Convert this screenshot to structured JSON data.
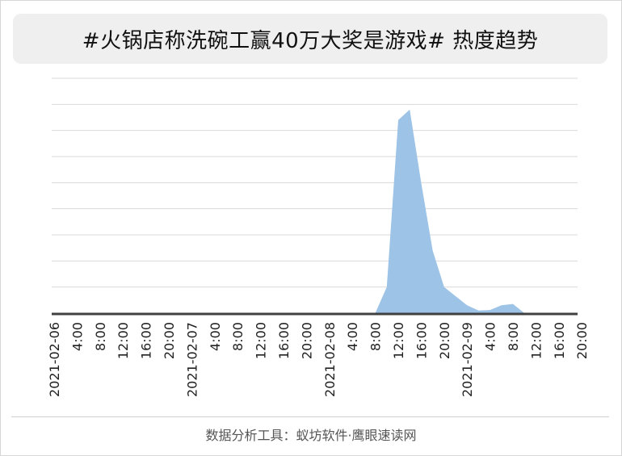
{
  "title": "#火锅店称洗碗工赢40万大奖是游戏# 热度趋势",
  "footer": "数据分析工具：蚁坊软件·鹰眼速读网",
  "colors": {
    "area": "#9dc3e6",
    "grid": "#d9d9d9",
    "axis": "#404040",
    "text": "#222222"
  },
  "chart_data": {
    "type": "area",
    "title": "#火锅店称洗碗工赢40万大奖是游戏# 热度趋势",
    "xlabel": "",
    "ylabel": "",
    "grid": true,
    "legend": "none",
    "ylim": [
      0,
      9
    ],
    "y_ticks_shown": false,
    "tick_labels": [
      "2021-02-06",
      "4:00",
      "8:00",
      "12:00",
      "16:00",
      "20:00",
      "2021-02-07",
      "4:00",
      "8:00",
      "12:00",
      "16:00",
      "20:00",
      "2021-02-08",
      "4:00",
      "8:00",
      "12:00",
      "16:00",
      "20:00",
      "2021-02-09",
      "4:00",
      "8:00",
      "12:00",
      "16:00",
      "20:00"
    ],
    "x": [
      "2021-02-06 00:00",
      "2021-02-06 02:00",
      "2021-02-06 04:00",
      "2021-02-06 06:00",
      "2021-02-06 08:00",
      "2021-02-06 10:00",
      "2021-02-06 12:00",
      "2021-02-06 14:00",
      "2021-02-06 16:00",
      "2021-02-06 18:00",
      "2021-02-06 20:00",
      "2021-02-06 22:00",
      "2021-02-07 00:00",
      "2021-02-07 02:00",
      "2021-02-07 04:00",
      "2021-02-07 06:00",
      "2021-02-07 08:00",
      "2021-02-07 10:00",
      "2021-02-07 12:00",
      "2021-02-07 14:00",
      "2021-02-07 16:00",
      "2021-02-07 18:00",
      "2021-02-07 20:00",
      "2021-02-07 22:00",
      "2021-02-08 00:00",
      "2021-02-08 02:00",
      "2021-02-08 04:00",
      "2021-02-08 06:00",
      "2021-02-08 08:00",
      "2021-02-08 10:00",
      "2021-02-08 12:00",
      "2021-02-08 14:00",
      "2021-02-08 16:00",
      "2021-02-08 18:00",
      "2021-02-08 20:00",
      "2021-02-08 22:00",
      "2021-02-09 00:00",
      "2021-02-09 02:00",
      "2021-02-09 04:00",
      "2021-02-09 06:00",
      "2021-02-09 08:00",
      "2021-02-09 10:00",
      "2021-02-09 12:00",
      "2021-02-09 14:00",
      "2021-02-09 16:00",
      "2021-02-09 18:00",
      "2021-02-09 20:00",
      "2021-02-09 22:00"
    ],
    "series": [
      {
        "values": [
          0,
          0,
          0,
          0,
          0,
          0,
          0,
          0,
          0,
          0,
          0,
          0,
          0,
          0,
          0,
          0,
          0,
          0,
          0,
          0,
          0,
          0,
          0,
          0,
          0,
          0,
          0,
          0,
          0,
          1.0,
          7.4,
          7.8,
          5.0,
          2.4,
          1.0,
          0.65,
          0.3,
          0.1,
          0.12,
          0.3,
          0.35,
          0,
          0,
          0,
          0,
          0,
          0,
          0
        ]
      }
    ]
  }
}
